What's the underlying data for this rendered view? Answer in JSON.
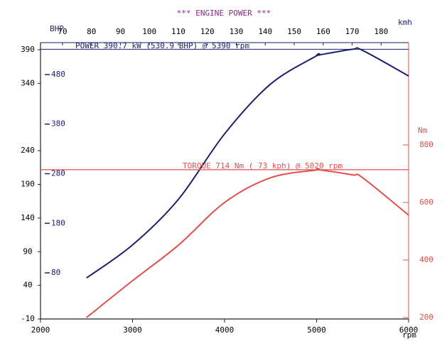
{
  "chart_data": {
    "type": "line",
    "title": "***   ENGINE POWER   ***",
    "x": [
      2500,
      3000,
      3500,
      4000,
      4500,
      5000,
      5020,
      5390,
      5500,
      6000
    ],
    "xlim": [
      2000,
      6000
    ],
    "xticks": [
      2000,
      3000,
      4000,
      5000,
      6000
    ],
    "x_label": "rpm",
    "ylim": [
      -10,
      390
    ],
    "yticks": [
      -10,
      40,
      90,
      140,
      190,
      240,
      340,
      390
    ],
    "y2lim": [
      195,
      1131
    ],
    "y2ticks": [
      200,
      400,
      600,
      800
    ],
    "y2_label": "Nm",
    "bhp_label": "BHP",
    "bhp_lim": [
      -13,
      530
    ],
    "bhp_ticks": [
      80,
      180,
      280,
      380,
      480
    ],
    "kmh_label": "kmh",
    "kmh_lim": [
      62.4,
      189.5
    ],
    "kmh_ticks": [
      70,
      80,
      90,
      100,
      110,
      120,
      130,
      140,
      150,
      160,
      170,
      180
    ],
    "annotations": [
      "POWER 390.7 kW (530.9 BHP) @  5390 rpm",
      "TORQUE  714 Nm ( 73 kph) @  5020 rpm"
    ],
    "series": [
      {
        "color": "#1c1f6e",
        "values": [
          51,
          100,
          168,
          265,
          339,
          381,
          382,
          390.7,
          389,
          351
        ]
      },
      {
        "color": "#e0504c",
        "axis": "y2",
        "values": [
          200,
          328,
          452,
          600,
          686,
          713,
          714,
          696,
          686,
          556
        ]
      }
    ]
  }
}
